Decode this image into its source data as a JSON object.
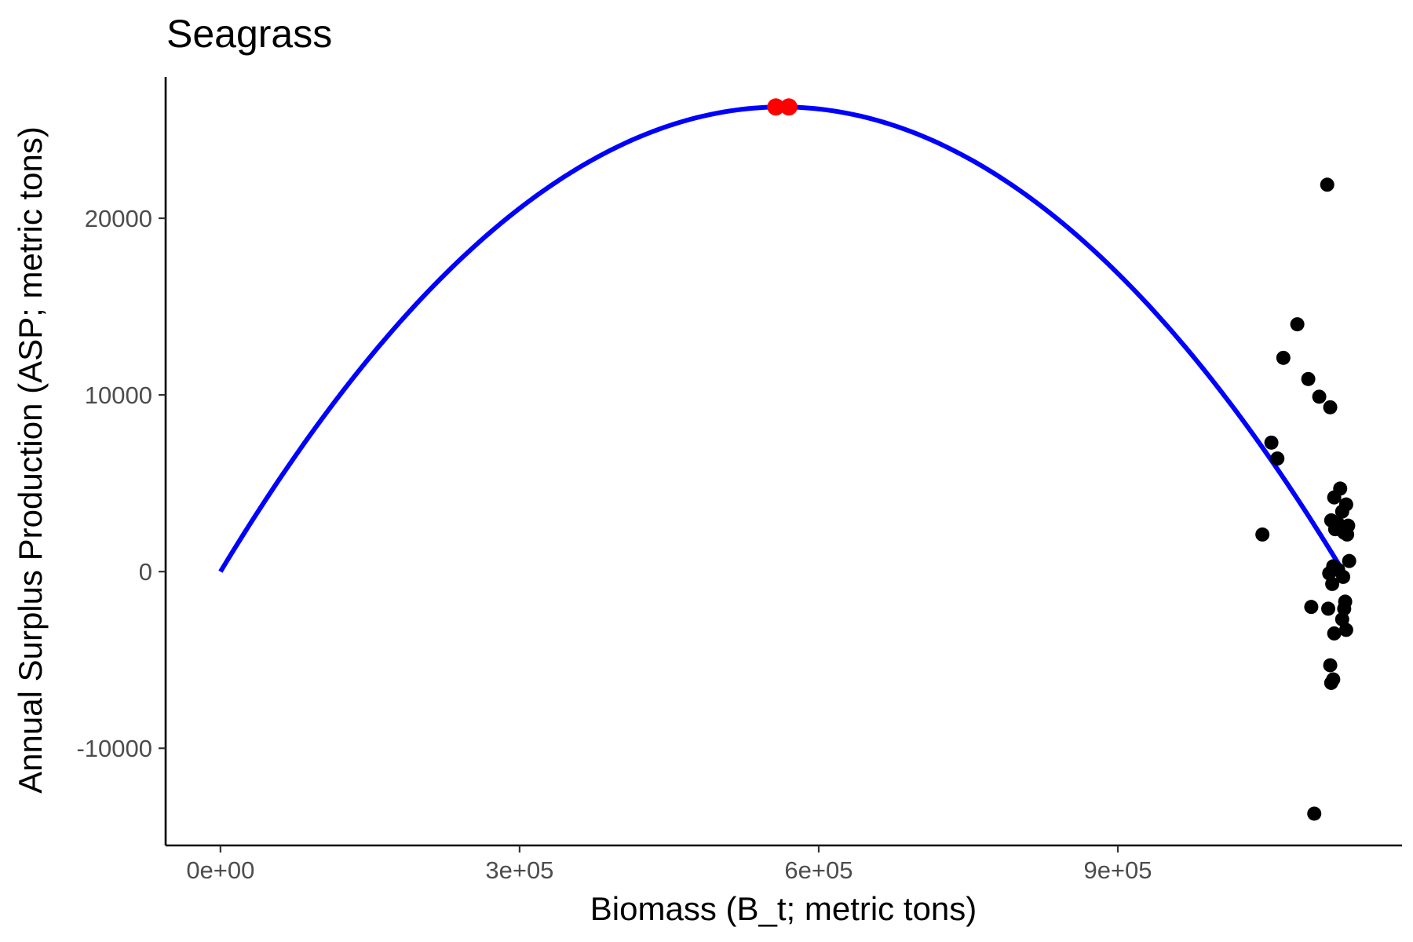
{
  "chart_data": {
    "type": "scatter",
    "title": "Seagrass",
    "xlabel": "Biomass (B_t; metric tons)",
    "ylabel": "Annual Surplus Production (ASP; metric tons)",
    "xlim": [
      -55000,
      1185000
    ],
    "ylim": [
      -15500,
      28000
    ],
    "x_ticks": [
      {
        "value": 0,
        "label": "0e+00"
      },
      {
        "value": 300000,
        "label": "3e+05"
      },
      {
        "value": 600000,
        "label": "6e+05"
      },
      {
        "value": 900000,
        "label": "9e+05"
      }
    ],
    "y_ticks": [
      {
        "value": 20000,
        "label": "20000"
      },
      {
        "value": 10000,
        "label": "10000"
      },
      {
        "value": 0,
        "label": "0"
      },
      {
        "value": -10000,
        "label": "-10000"
      }
    ],
    "grid": false,
    "legend": "none",
    "curve": {
      "form": "parabola",
      "color": "#0000ff",
      "x_start": 0,
      "x_end": 1126000,
      "peak_x": 563000,
      "peak_y": 26300
    },
    "highlight_points": {
      "color": "#ff0000",
      "points": [
        {
          "x": 557000,
          "y": 26300
        },
        {
          "x": 570000,
          "y": 26300
        }
      ]
    },
    "observations": {
      "color": "#000000",
      "points": [
        {
          "x": 1110000,
          "y": 21900
        },
        {
          "x": 1080000,
          "y": 14000
        },
        {
          "x": 1066000,
          "y": 12100
        },
        {
          "x": 1091000,
          "y": 10900
        },
        {
          "x": 1102000,
          "y": 9900
        },
        {
          "x": 1113000,
          "y": 9300
        },
        {
          "x": 1054000,
          "y": 7300
        },
        {
          "x": 1060000,
          "y": 6400
        },
        {
          "x": 1123000,
          "y": 4700
        },
        {
          "x": 1117000,
          "y": 4200
        },
        {
          "x": 1129000,
          "y": 3800
        },
        {
          "x": 1125000,
          "y": 3400
        },
        {
          "x": 1114000,
          "y": 2900
        },
        {
          "x": 1121000,
          "y": 2700
        },
        {
          "x": 1131000,
          "y": 2600
        },
        {
          "x": 1118000,
          "y": 2400
        },
        {
          "x": 1127000,
          "y": 2200
        },
        {
          "x": 1045000,
          "y": 2100
        },
        {
          "x": 1130000,
          "y": 2100
        },
        {
          "x": 1132000,
          "y": 600
        },
        {
          "x": 1116000,
          "y": 300
        },
        {
          "x": 1121000,
          "y": 100
        },
        {
          "x": 1112000,
          "y": -100
        },
        {
          "x": 1126000,
          "y": -300
        },
        {
          "x": 1115000,
          "y": -700
        },
        {
          "x": 1128000,
          "y": -1700
        },
        {
          "x": 1094000,
          "y": -2000
        },
        {
          "x": 1111000,
          "y": -2100
        },
        {
          "x": 1127000,
          "y": -2100
        },
        {
          "x": 1125000,
          "y": -2700
        },
        {
          "x": 1129000,
          "y": -3300
        },
        {
          "x": 1117000,
          "y": -3500
        },
        {
          "x": 1113000,
          "y": -5300
        },
        {
          "x": 1116000,
          "y": -6100
        },
        {
          "x": 1114000,
          "y": -6300
        },
        {
          "x": 1097000,
          "y": -13700
        }
      ]
    }
  }
}
